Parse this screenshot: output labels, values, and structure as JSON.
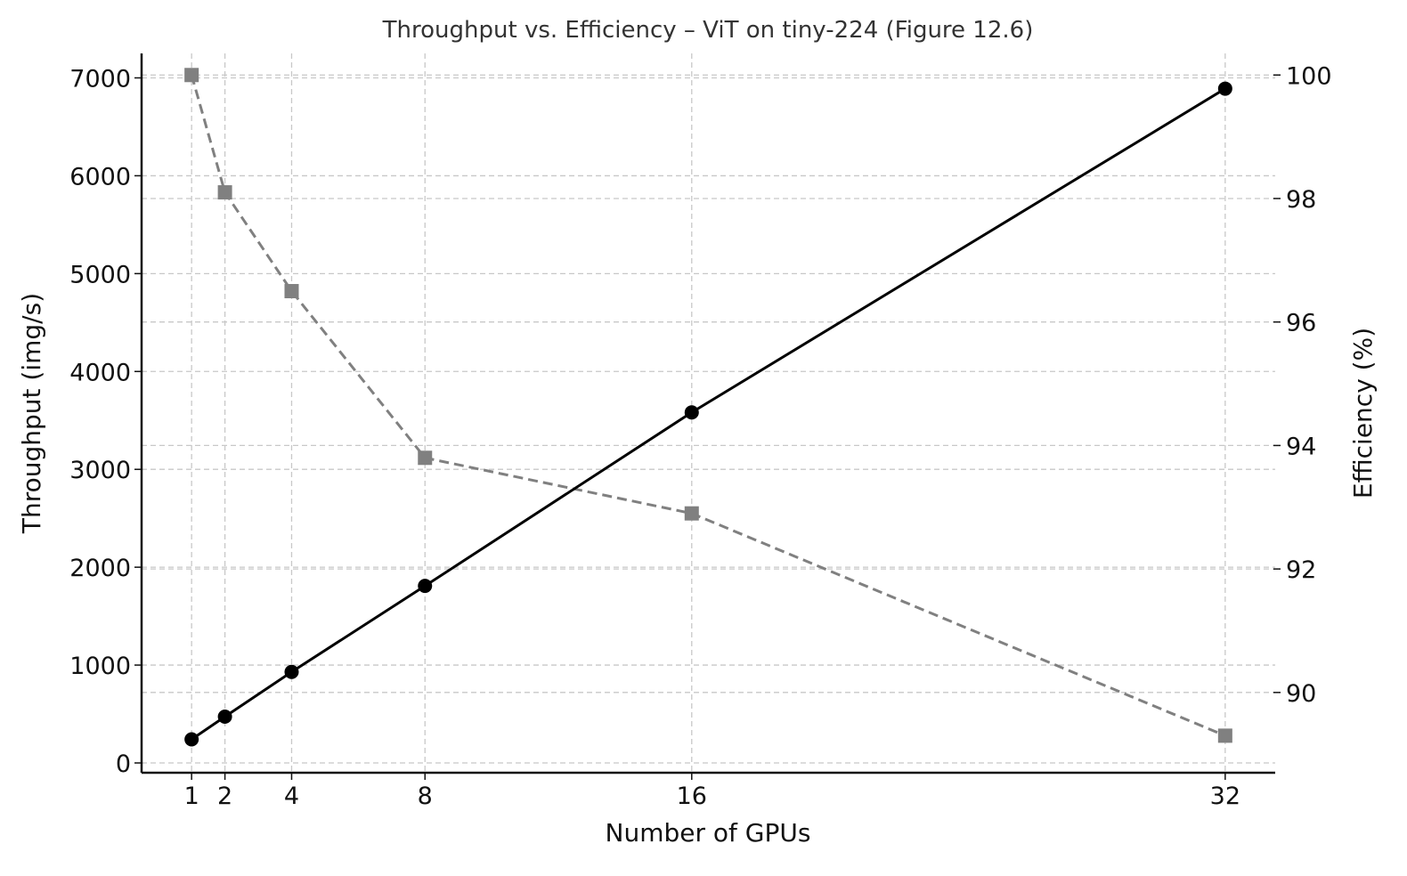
{
  "chart_data": {
    "type": "line",
    "title": "Throughput vs. Efficiency – ViT on tiny-224 (Figure 12.6)",
    "xlabel": "Number of GPUs",
    "ylabel": "Throughput (img/s)",
    "y2label": "Efficiency (%)",
    "x": [
      1,
      2,
      4,
      8,
      16,
      32
    ],
    "xticks": [
      "1",
      "2",
      "4",
      "8",
      "16",
      "32"
    ],
    "xlim": [
      -0.5,
      33.5
    ],
    "ylim": [
      -100,
      7250
    ],
    "y2lim": [
      88.7,
      100.35
    ],
    "yticks": [
      0,
      1000,
      2000,
      3000,
      4000,
      5000,
      6000,
      7000
    ],
    "y2ticks": [
      90,
      92,
      94,
      96,
      98,
      100
    ],
    "grid": true,
    "series": [
      {
        "axis": "left",
        "values": [
          241,
          473,
          930,
          1809,
          3582,
          6890
        ],
        "color": "#000000",
        "marker": "circle",
        "linestyle": "solid"
      },
      {
        "axis": "right",
        "values": [
          100,
          98.1,
          96.5,
          93.8,
          92.9,
          89.3
        ],
        "color": "#808080",
        "marker": "square",
        "linestyle": "dashed"
      }
    ]
  }
}
